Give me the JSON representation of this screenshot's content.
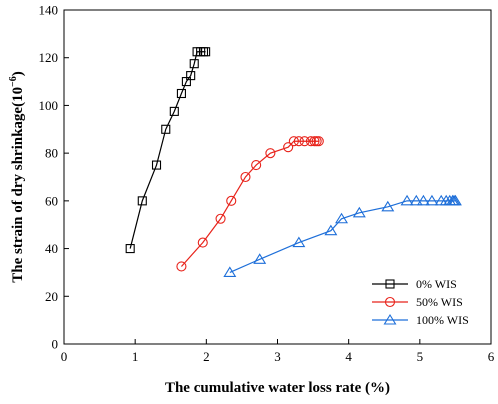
{
  "chart_data": {
    "type": "line",
    "xlabel": "The cumulative water loss rate (%)",
    "ylabel_main": "The strain of dry  shrinkage(10",
    "ylabel_exp": "−6",
    "ylabel_close": ")",
    "xlim": [
      0,
      6
    ],
    "ylim": [
      0,
      140
    ],
    "xticks": [
      0,
      1,
      2,
      3,
      4,
      5,
      6
    ],
    "yticks": [
      0,
      20,
      40,
      60,
      80,
      100,
      120,
      140
    ],
    "grid": false,
    "legend_position": "lower-right",
    "series": [
      {
        "name": "0% WIS",
        "color": "#000000",
        "marker": "square",
        "x": [
          0.93,
          1.1,
          1.3,
          1.43,
          1.55,
          1.65,
          1.72,
          1.78,
          1.83,
          1.87,
          1.92,
          1.96,
          1.99
        ],
        "y": [
          40,
          60,
          75,
          90,
          97.5,
          105,
          110,
          112.5,
          117.5,
          122.5,
          122.5,
          122.5,
          122.5
        ]
      },
      {
        "name": "50% WIS",
        "color": "#e8231b",
        "marker": "circle",
        "x": [
          1.65,
          1.95,
          2.2,
          2.35,
          2.55,
          2.7,
          2.9,
          3.15,
          3.23,
          3.3,
          3.38,
          3.47,
          3.52,
          3.55,
          3.58
        ],
        "y": [
          32.5,
          42.5,
          52.5,
          60,
          70,
          75,
          80,
          82.5,
          85,
          85,
          85,
          85,
          85,
          85,
          85
        ]
      },
      {
        "name": "100% WIS",
        "color": "#1e6fd9",
        "marker": "triangle",
        "x": [
          2.33,
          2.75,
          3.3,
          3.75,
          3.9,
          4.15,
          4.55,
          4.82,
          4.95,
          5.05,
          5.17,
          5.3,
          5.37,
          5.42,
          5.46,
          5.48,
          5.5
        ],
        "y": [
          30,
          35.5,
          42.5,
          47.5,
          52.5,
          55,
          57.5,
          60,
          60,
          60,
          60,
          60,
          60,
          60,
          60,
          60,
          60
        ]
      }
    ]
  }
}
